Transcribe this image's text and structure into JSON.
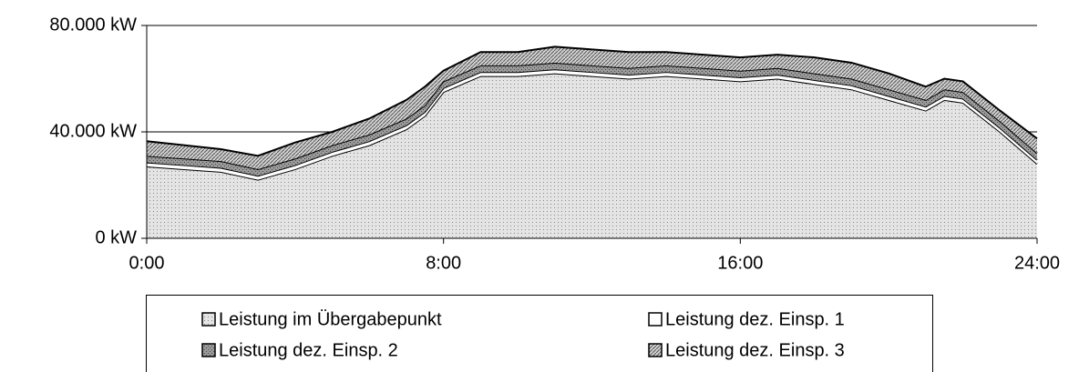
{
  "chart_data": {
    "type": "stacked_area",
    "x": [
      0,
      1,
      2,
      3,
      4,
      5,
      6,
      7,
      7.5,
      8,
      9,
      10,
      11,
      12,
      13,
      14,
      15,
      16,
      17,
      18,
      19,
      20,
      21,
      21.5,
      22,
      23,
      24
    ],
    "series": [
      {
        "name": "Leistung im Übergabepunkt",
        "color": "#e4e4e4",
        "values": [
          27000,
          26000,
          25000,
          22000,
          26000,
          31000,
          35000,
          41000,
          46000,
          55000,
          61000,
          61000,
          62000,
          61000,
          60000,
          61000,
          60000,
          59000,
          60000,
          58000,
          56000,
          52000,
          48000,
          52000,
          51000,
          40000,
          28000
        ]
      },
      {
        "name": "Leistung dez. Einsp. 1",
        "color": "#ffffff",
        "values": [
          1500,
          1500,
          1500,
          1500,
          1500,
          1500,
          1500,
          1500,
          1500,
          1500,
          1500,
          1500,
          1500,
          1500,
          1500,
          1500,
          1500,
          1500,
          1500,
          1500,
          1500,
          1500,
          1500,
          1500,
          1500,
          1500,
          1500
        ]
      },
      {
        "name": "Leistung dez. Einsp. 2",
        "color": "#9a9a9a",
        "values": [
          2500,
          2500,
          2500,
          2500,
          2500,
          2500,
          2500,
          2500,
          2500,
          2500,
          2500,
          2500,
          2500,
          2500,
          2500,
          2500,
          2500,
          2500,
          2500,
          2500,
          2500,
          2500,
          2500,
          2500,
          2500,
          2500,
          2500
        ]
      },
      {
        "name": "Leistung dez. Einsp. 3",
        "color": "#d2d2d2",
        "values": [
          5500,
          5000,
          4500,
          5000,
          6000,
          5000,
          6000,
          7000,
          7000,
          4000,
          5000,
          5000,
          6000,
          6000,
          6000,
          5000,
          5000,
          5000,
          5000,
          6000,
          6000,
          6000,
          5000,
          4000,
          4000,
          4000,
          5500
        ]
      }
    ],
    "xlim": [
      0,
      24
    ],
    "xticks": [
      {
        "value": 0,
        "label": "0:00"
      },
      {
        "value": 8,
        "label": "8:00"
      },
      {
        "value": 16,
        "label": "16:00"
      },
      {
        "value": 24,
        "label": "24:00"
      }
    ],
    "ylim": [
      0,
      80000
    ],
    "yticks": [
      {
        "value": 0,
        "label": "0 kW"
      },
      {
        "value": 40000,
        "label": "40.000 kW"
      },
      {
        "value": 80000,
        "label": "80.000 kW"
      }
    ],
    "grid": true
  }
}
